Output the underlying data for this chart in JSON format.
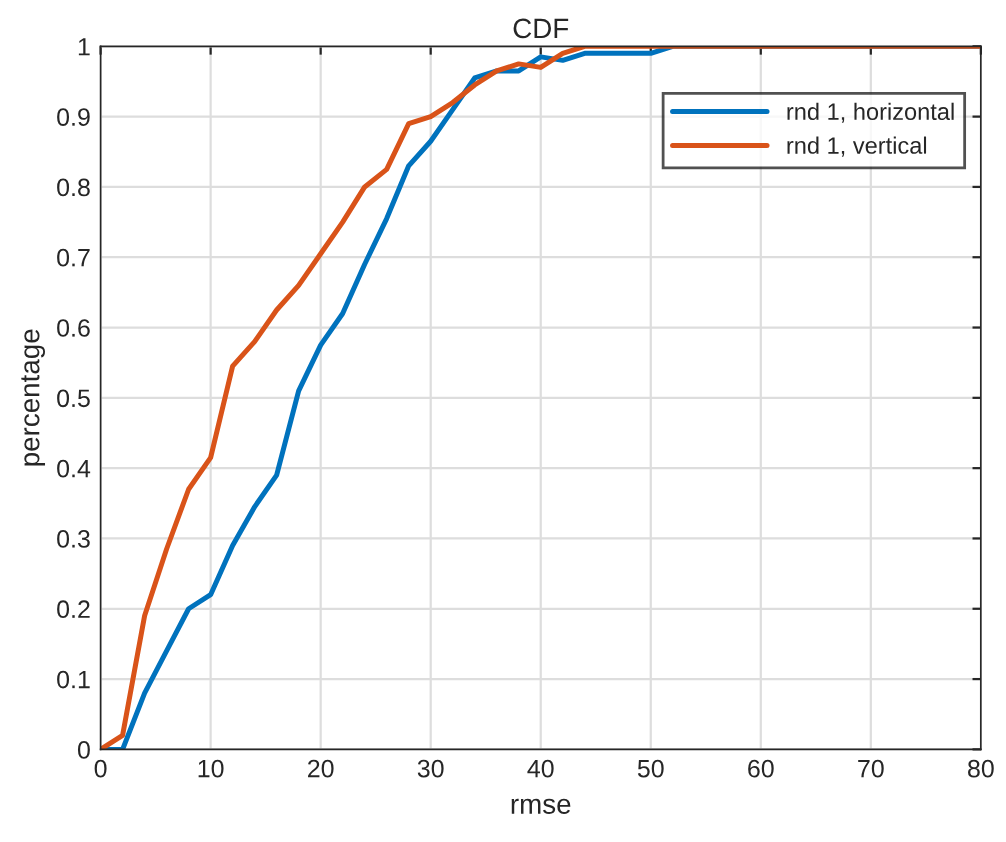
{
  "chart_data": {
    "type": "line",
    "title": "CDF",
    "xlabel": "rmse",
    "ylabel": "percentage",
    "xlim": [
      0,
      80
    ],
    "xticks": [
      0,
      10,
      20,
      30,
      40,
      50,
      60,
      70,
      80
    ],
    "ylim": [
      0,
      1
    ],
    "yticks": [
      0,
      0.1,
      0.2,
      0.3,
      0.4,
      0.5,
      0.6,
      0.7,
      0.8,
      0.9,
      1
    ],
    "grid": true,
    "legend": "top right",
    "marker": "none",
    "line_style": "solid",
    "series": [
      {
        "name": "rnd 1, horizontal",
        "color": "#0072bd",
        "x": [
          0,
          2,
          4,
          6,
          8,
          10,
          12,
          14,
          16,
          18,
          20,
          22,
          24,
          26,
          28,
          30,
          32,
          34,
          36,
          38,
          40,
          42,
          44,
          46,
          48,
          50,
          52,
          80
        ],
        "values": [
          0,
          0,
          0.08,
          0.14,
          0.2,
          0.22,
          0.29,
          0.345,
          0.39,
          0.51,
          0.575,
          0.62,
          0.69,
          0.755,
          0.83,
          0.865,
          0.91,
          0.955,
          0.965,
          0.965,
          0.985,
          0.98,
          0.99,
          0.99,
          0.99,
          0.99,
          1,
          1
        ]
      },
      {
        "name": "rnd 1, vertical",
        "color": "#d95319",
        "x": [
          0,
          2,
          4,
          6,
          8,
          10,
          12,
          14,
          16,
          18,
          20,
          22,
          24,
          26,
          28,
          30,
          32,
          34,
          36,
          38,
          40,
          42,
          44,
          80
        ],
        "values": [
          0,
          0.02,
          0.19,
          0.285,
          0.37,
          0.415,
          0.545,
          0.58,
          0.625,
          0.66,
          0.705,
          0.75,
          0.8,
          0.825,
          0.89,
          0.9,
          0.92,
          0.945,
          0.965,
          0.975,
          0.97,
          0.99,
          1,
          1
        ]
      }
    ]
  }
}
